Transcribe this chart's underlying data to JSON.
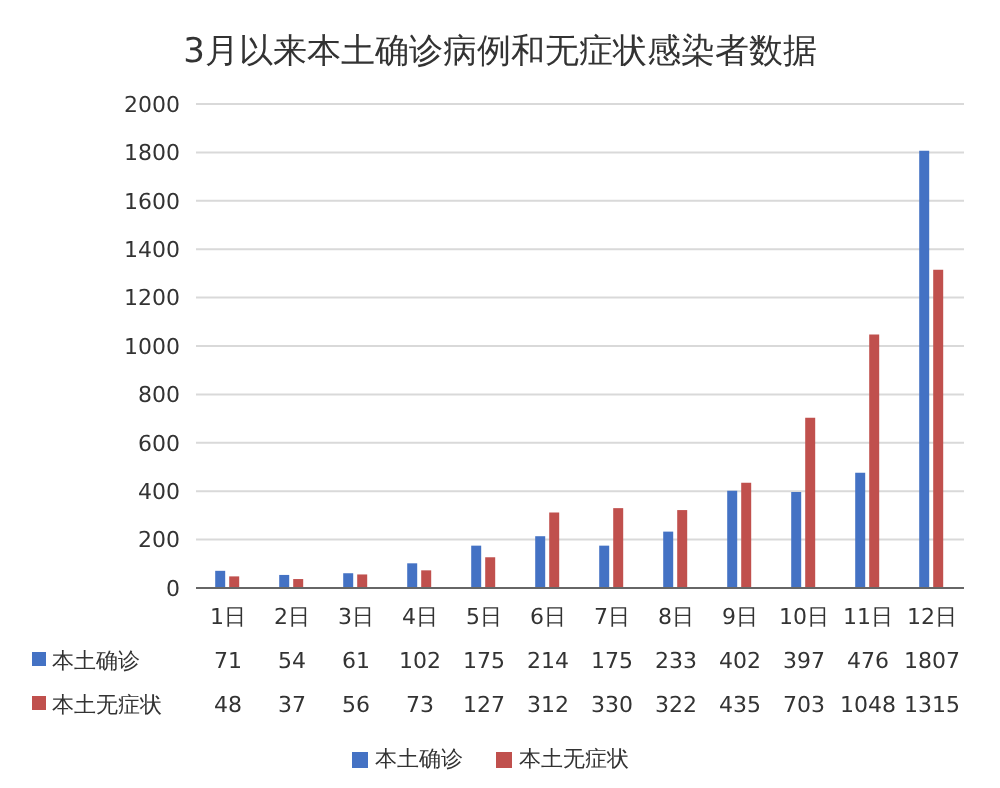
{
  "chart_data": {
    "type": "bar",
    "title": "3月以来本土确诊病例和无症状感染者数据",
    "categories": [
      "1日",
      "2日",
      "3日",
      "4日",
      "5日",
      "6日",
      "7日",
      "8日",
      "9日",
      "10日",
      "11日",
      "12日"
    ],
    "series": [
      {
        "name": "本土确诊",
        "color": "#4472c4",
        "values": [
          71,
          54,
          61,
          102,
          175,
          214,
          175,
          233,
          402,
          397,
          476,
          1807
        ]
      },
      {
        "name": "本土无症状",
        "color": "#c0504d",
        "values": [
          48,
          37,
          56,
          73,
          127,
          312,
          330,
          322,
          435,
          703,
          1048,
          1315
        ]
      }
    ],
    "ylim": [
      0,
      2000
    ],
    "yticks": [
      0,
      200,
      400,
      600,
      800,
      1000,
      1200,
      1400,
      1600,
      1800,
      2000
    ],
    "grid": "y",
    "legend": "bottom",
    "data_labels": true
  }
}
